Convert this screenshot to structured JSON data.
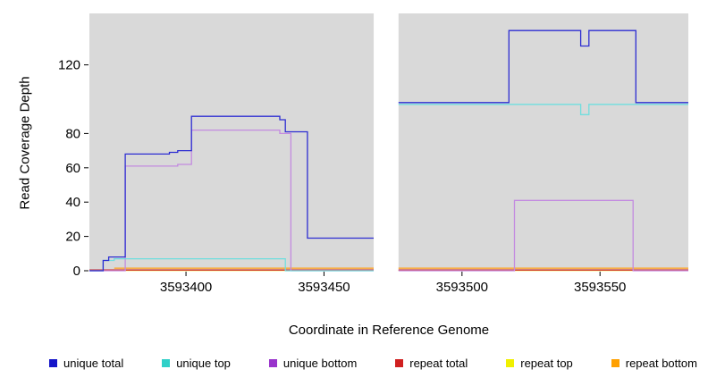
{
  "chart_data": {
    "type": "line",
    "title": "",
    "xlabel": "Coordinate in Reference Genome",
    "ylabel": "Read Coverage Depth",
    "xlim": [
      3593365,
      3593582
    ],
    "ylim": [
      0,
      150
    ],
    "x_ticks": [
      3593400,
      3593450,
      3593500,
      3593550
    ],
    "y_ticks": [
      0,
      20,
      40,
      60,
      80,
      120
    ],
    "panel_color": "#d9d9d9",
    "gap_region": [
      3593468,
      3593477
    ],
    "grid": false,
    "legend_position": "bottom",
    "series": [
      {
        "name": "repeat top",
        "color": "#f2f216",
        "segments": [
          [
            [
              3593365,
              0.2
            ],
            [
              3593468,
              0.2
            ]
          ],
          [
            [
              3593477,
              0.2
            ],
            [
              3593582,
              0.2
            ]
          ]
        ]
      },
      {
        "name": "repeat total",
        "color": "#cc2626",
        "segments": [
          [
            [
              3593365,
              0.4
            ],
            [
              3593468,
              0.4
            ]
          ],
          [
            [
              3593477,
              0.4
            ],
            [
              3593582,
              0.4
            ]
          ]
        ]
      },
      {
        "name": "repeat bottom",
        "color": "#ff9f1a",
        "segments": [
          [
            [
              3593374,
              1.5
            ],
            [
              3593468,
              1.5
            ]
          ],
          [
            [
              3593477,
              1.5
            ],
            [
              3593582,
              1.5
            ]
          ]
        ]
      },
      {
        "name": "unique bottom",
        "color": "#c38ae0",
        "segments": [
          [
            [
              3593365,
              0
            ],
            [
              3593378,
              0
            ],
            [
              3593378,
              61
            ],
            [
              3593397,
              61
            ],
            [
              3593397,
              62
            ],
            [
              3593402,
              62
            ],
            [
              3593402,
              82
            ],
            [
              3593434,
              82
            ],
            [
              3593434,
              80
            ],
            [
              3593438,
              80
            ],
            [
              3593438,
              0
            ],
            [
              3593468,
              0
            ]
          ],
          [
            [
              3593477,
              0
            ],
            [
              3593519,
              0
            ],
            [
              3593519,
              41
            ],
            [
              3593562,
              41
            ],
            [
              3593562,
              0
            ],
            [
              3593582,
              0
            ]
          ]
        ]
      },
      {
        "name": "unique top",
        "color": "#70dede",
        "segments": [
          [
            [
              3593365,
              0
            ],
            [
              3593370,
              0
            ],
            [
              3593370,
              6
            ],
            [
              3593374,
              6
            ],
            [
              3593374,
              7
            ],
            [
              3593436,
              7
            ],
            [
              3593436,
              0
            ],
            [
              3593468,
              0
            ]
          ],
          [
            [
              3593477,
              97
            ],
            [
              3593543,
              97
            ],
            [
              3593543,
              91
            ],
            [
              3593546,
              91
            ],
            [
              3593546,
              97
            ],
            [
              3593582,
              97
            ]
          ]
        ]
      },
      {
        "name": "unique total",
        "color": "#2d2dd2",
        "segments": [
          [
            [
              3593365,
              0
            ],
            [
              3593370,
              0
            ],
            [
              3593370,
              6
            ],
            [
              3593372,
              6
            ],
            [
              3593372,
              8
            ],
            [
              3593378,
              8
            ],
            [
              3593378,
              68
            ],
            [
              3593394,
              68
            ],
            [
              3593394,
              69
            ],
            [
              3593397,
              69
            ],
            [
              3593397,
              70
            ],
            [
              3593402,
              70
            ],
            [
              3593402,
              90
            ],
            [
              3593434,
              90
            ],
            [
              3593434,
              88
            ],
            [
              3593436,
              88
            ],
            [
              3593436,
              81
            ],
            [
              3593444,
              81
            ],
            [
              3593444,
              19
            ],
            [
              3593468,
              19
            ]
          ],
          [
            [
              3593477,
              98
            ],
            [
              3593517,
              98
            ],
            [
              3593517,
              140
            ],
            [
              3593543,
              140
            ],
            [
              3593543,
              131
            ],
            [
              3593546,
              131
            ],
            [
              3593546,
              140
            ],
            [
              3593563,
              140
            ],
            [
              3593563,
              98
            ],
            [
              3593582,
              98
            ]
          ]
        ]
      }
    ],
    "legend": [
      {
        "label": "unique total",
        "color": "#1515c8"
      },
      {
        "label": "unique top",
        "color": "#30d0c8"
      },
      {
        "label": "unique bottom",
        "color": "#9933cc"
      },
      {
        "label": "repeat total",
        "color": "#d02020"
      },
      {
        "label": "repeat top",
        "color": "#f0f000"
      },
      {
        "label": "repeat bottom",
        "color": "#ffa000"
      }
    ]
  }
}
